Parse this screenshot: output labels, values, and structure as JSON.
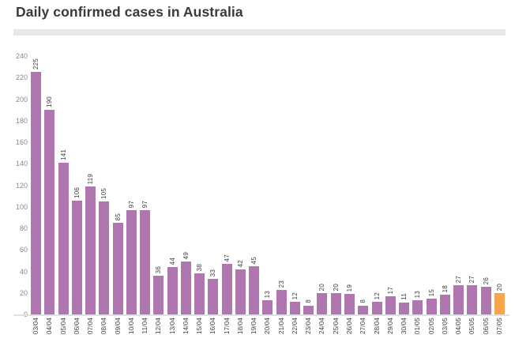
{
  "header": {
    "title": "Daily confirmed cases in Australia"
  },
  "chart_data": {
    "type": "bar",
    "title": "Daily confirmed cases in Australia",
    "categories": [
      "03/04",
      "04/04",
      "05/04",
      "06/04",
      "07/04",
      "08/04",
      "09/04",
      "10/04",
      "11/04",
      "12/04",
      "13/04",
      "14/04",
      "15/04",
      "16/04",
      "17/04",
      "18/04",
      "19/04",
      "20/04",
      "21/04",
      "22/04",
      "23/04",
      "24/04",
      "25/04",
      "26/04",
      "27/04",
      "28/04",
      "29/04",
      "30/04",
      "01/05",
      "02/05",
      "03/05",
      "04/05",
      "05/05",
      "06/05",
      "07/05"
    ],
    "values": [
      225,
      190,
      141,
      106,
      119,
      105,
      85,
      97,
      97,
      36,
      44,
      49,
      38,
      33,
      47,
      42,
      45,
      13,
      23,
      12,
      8,
      20,
      20,
      19,
      8,
      12,
      17,
      11,
      13,
      15,
      18,
      27,
      27,
      26,
      20
    ],
    "highlight_index": 34,
    "highlight_category": "07/05",
    "bar_color": "#af76b0",
    "highlight_color": "#f8a44a",
    "value_labels_shown": true,
    "value_label_rotation_deg": 90,
    "xtick_rotation_deg": 90,
    "xlabel": "",
    "ylabel": "",
    "ylim": [
      0,
      240
    ],
    "ytick_step": 20,
    "grid": false,
    "legend": null
  },
  "colors": {
    "background": "#ffffff",
    "title_text": "#3a3a3a",
    "y_tick_text": "#8a8a8a",
    "bar_label_text": "#3d3d3d",
    "x_tick_text": "#3d3d3d",
    "divider": "#e7e7e7",
    "baseline": "#e0e0e0"
  }
}
